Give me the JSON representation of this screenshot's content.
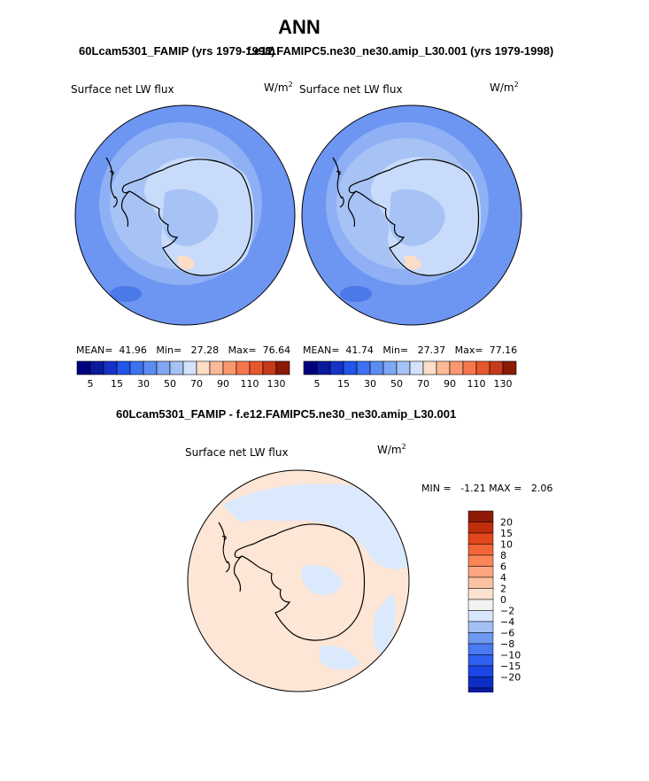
{
  "page": {
    "title": "ANN",
    "left_case": "60Lcam5301_FAMIP (yrs 1979-1998)",
    "right_case": "f.e12.FAMIPC5.ne30_ne30.amip_L30.001 (yrs 1979-1998)",
    "diff_title": "60Lcam5301_FAMIP - f.e12.FAMIPC5.ne30_ne30.amip_L30.001"
  },
  "panels": [
    {
      "variable": "Surface net LW flux",
      "units": "W/m",
      "units_exp": "2",
      "mean_label": "MEAN=",
      "mean": "41.96",
      "min_label": "Min=",
      "min": "27.28",
      "max_label": "Max=",
      "max": "76.64"
    },
    {
      "variable": "Surface net LW flux",
      "units": "W/m",
      "units_exp": "2",
      "mean_label": "MEAN=",
      "mean": "41.74",
      "min_label": "Min=",
      "min": "27.37",
      "max_label": "Max=",
      "max": "77.16"
    }
  ],
  "diff_panel": {
    "variable": "Surface net LW flux",
    "units": "W/m",
    "units_exp": "2",
    "min_label": "MIN =",
    "min": "-1.21",
    "max_label": "MAX =",
    "max": "2.06"
  },
  "colors": {
    "abs_scale": [
      "#00007f",
      "#0a1a9c",
      "#1633c8",
      "#2255e8",
      "#3d72f2",
      "#5b8cf2",
      "#7fa6f2",
      "#a5c2f4",
      "#d4e3fa",
      "#fddcc8",
      "#fcb998",
      "#fc9870",
      "#f6774d",
      "#e8562e",
      "#c43a1a",
      "#8c1a05"
    ],
    "diff_scale": [
      "#00007f",
      "#0a1a9c",
      "#0d2ec4",
      "#1a46e6",
      "#2f5ff0",
      "#4a7af2",
      "#6f98f2",
      "#a3c0f4",
      "#d6e6fc",
      "#f2f2f2",
      "#fde3cf",
      "#fcc3a2",
      "#fca57e",
      "#fa865a",
      "#f26637",
      "#e2471c",
      "#c02d0c",
      "#8c1a05"
    ],
    "ocean_base": "#6d95f2",
    "ocean_ring": "#8fb0f4",
    "ocean_dark": "#4c79e8",
    "antarctica_interior": "#c8dbfa",
    "antarctica_mid": "#a7c3f5",
    "diff_warm": "#fde6d5",
    "diff_cool": "#dbe9fc"
  },
  "chart_data": [
    {
      "type": "heatmap",
      "title": "Surface net LW flux",
      "subtitle": "60Lcam5301_FAMIP (yrs 1979-1998)",
      "units": "W/m^2",
      "projection": "south polar stereographic",
      "mean": 41.96,
      "min": 27.28,
      "max": 76.64,
      "colorbar_ticks": [
        5,
        15,
        30,
        50,
        70,
        90,
        110,
        130
      ]
    },
    {
      "type": "heatmap",
      "title": "Surface net LW flux",
      "subtitle": "f.e12.FAMIPC5.ne30_ne30.amip_L30.001 (yrs 1979-1998)",
      "units": "W/m^2",
      "projection": "south polar stereographic",
      "mean": 41.74,
      "min": 27.37,
      "max": 77.16,
      "colorbar_ticks": [
        5,
        15,
        30,
        50,
        70,
        90,
        110,
        130
      ]
    },
    {
      "type": "heatmap",
      "title": "Surface net LW flux",
      "subtitle": "60Lcam5301_FAMIP - f.e12.FAMIPC5.ne30_ne30.amip_L30.001",
      "units": "W/m^2",
      "projection": "south polar stereographic",
      "min": -1.21,
      "max": 2.06,
      "colorbar_ticks": [
        20,
        15,
        10,
        8,
        6,
        4,
        2,
        0,
        -2,
        -4,
        -6,
        -8,
        -10,
        -15,
        -20
      ]
    }
  ]
}
